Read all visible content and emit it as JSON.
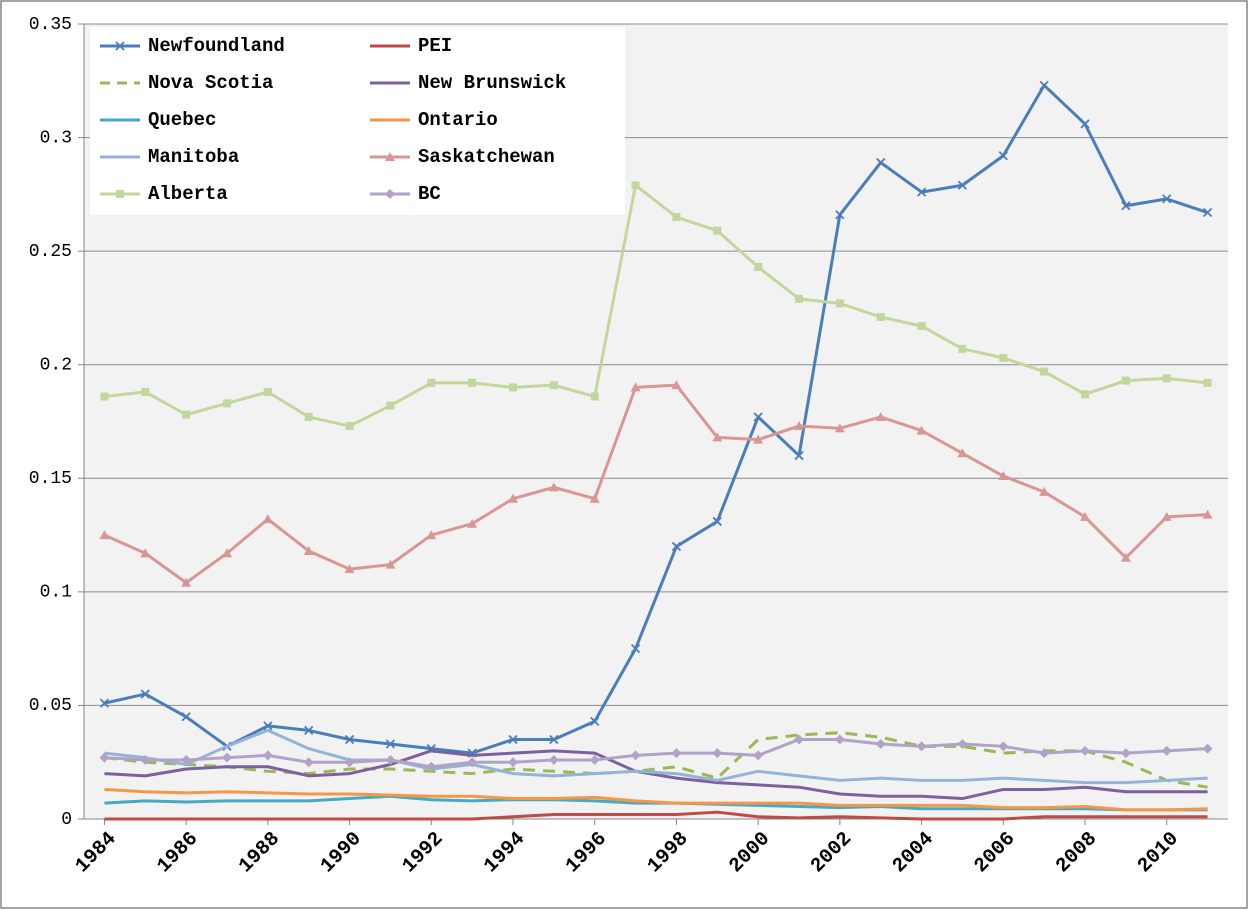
{
  "chart_data": {
    "type": "line",
    "x": [
      1984,
      1985,
      1986,
      1987,
      1988,
      1989,
      1990,
      1991,
      1992,
      1993,
      1994,
      1995,
      1996,
      1997,
      1998,
      1999,
      2000,
      2001,
      2002,
      2003,
      2004,
      2005,
      2006,
      2007,
      2008,
      2009,
      2010,
      2011
    ],
    "xlim": [
      1983.5,
      2011.5
    ],
    "xticks": [
      1984,
      1986,
      1988,
      1990,
      1992,
      1994,
      1996,
      1998,
      2000,
      2002,
      2004,
      2006,
      2008,
      2010
    ],
    "ylim": [
      0,
      0.35
    ],
    "yticks": [
      0,
      0.05,
      0.1,
      0.15,
      0.2,
      0.25,
      0.3,
      0.35
    ],
    "grid": true,
    "legend": "upper left",
    "series": [
      {
        "name": "Newfoundland",
        "color": "#4a7ebb",
        "marker": "x",
        "values": [
          0.051,
          0.055,
          0.045,
          0.032,
          0.041,
          0.039,
          0.035,
          0.033,
          0.031,
          0.029,
          0.035,
          0.035,
          0.043,
          0.075,
          0.12,
          0.131,
          0.177,
          0.16,
          0.266,
          0.289,
          0.276,
          0.279,
          0.292,
          0.323,
          0.306,
          0.27,
          0.273,
          0.267
        ]
      },
      {
        "name": "PEI",
        "color": "#be4b48",
        "values": [
          0,
          0,
          0,
          0,
          0,
          0,
          0,
          0,
          0,
          0,
          0.001,
          0.002,
          0.002,
          0.002,
          0.002,
          0.003,
          0.001,
          0.0005,
          0.001,
          0.0005,
          0,
          0,
          0,
          0.001,
          0.001,
          0.001,
          0.001,
          0.001
        ]
      },
      {
        "name": "Nova Scotia",
        "color": "#98b954",
        "dash": true,
        "values": [
          0.027,
          0.025,
          0.024,
          0.023,
          0.021,
          0.02,
          0.022,
          0.022,
          0.021,
          0.02,
          0.022,
          0.021,
          0.02,
          0.021,
          0.023,
          0.018,
          0.035,
          0.037,
          0.038,
          0.036,
          0.032,
          0.032,
          0.029,
          0.03,
          0.03,
          0.025,
          0.017,
          0.014
        ]
      },
      {
        "name": "New Brunswick",
        "color": "#7d60a0",
        "values": [
          0.02,
          0.019,
          0.022,
          0.023,
          0.023,
          0.019,
          0.02,
          0.024,
          0.03,
          0.028,
          0.029,
          0.03,
          0.029,
          0.021,
          0.018,
          0.016,
          0.015,
          0.014,
          0.011,
          0.01,
          0.01,
          0.009,
          0.013,
          0.013,
          0.014,
          0.012,
          0.012,
          0.012
        ]
      },
      {
        "name": "Quebec",
        "color": "#46aac5",
        "values": [
          0.007,
          0.008,
          0.0075,
          0.008,
          0.008,
          0.008,
          0.009,
          0.01,
          0.0085,
          0.008,
          0.0085,
          0.0085,
          0.008,
          0.007,
          0.007,
          0.0065,
          0.006,
          0.0055,
          0.005,
          0.0055,
          0.0045,
          0.0045,
          0.0045,
          0.0045,
          0.0045,
          0.004,
          0.004,
          0.004
        ]
      },
      {
        "name": "Ontario",
        "color": "#f79646",
        "values": [
          0.013,
          0.012,
          0.0115,
          0.012,
          0.0115,
          0.011,
          0.011,
          0.0105,
          0.01,
          0.01,
          0.009,
          0.009,
          0.0095,
          0.008,
          0.007,
          0.007,
          0.007,
          0.007,
          0.006,
          0.006,
          0.006,
          0.006,
          0.005,
          0.005,
          0.0055,
          0.004,
          0.004,
          0.0045
        ]
      },
      {
        "name": "Manitoba",
        "color": "#95b3d7",
        "values": [
          0.029,
          0.027,
          0.024,
          0.032,
          0.039,
          0.031,
          0.026,
          0.026,
          0.022,
          0.024,
          0.02,
          0.019,
          0.02,
          0.021,
          0.02,
          0.017,
          0.021,
          0.019,
          0.017,
          0.018,
          0.017,
          0.017,
          0.018,
          0.017,
          0.016,
          0.016,
          0.017,
          0.018
        ]
      },
      {
        "name": "Saskatchewan",
        "color": "#d99694",
        "marker": "triangle",
        "values": [
          0.125,
          0.117,
          0.104,
          0.117,
          0.132,
          0.118,
          0.11,
          0.112,
          0.125,
          0.13,
          0.141,
          0.146,
          0.141,
          0.19,
          0.191,
          0.168,
          0.167,
          0.173,
          0.172,
          0.177,
          0.171,
          0.161,
          0.151,
          0.144,
          0.133,
          0.115,
          0.133,
          0.134
        ]
      },
      {
        "name": "Alberta",
        "color": "#c3d69b",
        "marker": "square",
        "values": [
          0.186,
          0.188,
          0.178,
          0.183,
          0.188,
          0.177,
          0.173,
          0.182,
          0.192,
          0.192,
          0.19,
          0.191,
          0.186,
          0.279,
          0.265,
          0.259,
          0.243,
          0.229,
          0.227,
          0.221,
          0.217,
          0.207,
          0.203,
          0.197,
          0.187,
          0.193,
          0.194,
          0.192
        ]
      },
      {
        "name": "BC",
        "color": "#b3a2c7",
        "marker": "diamond",
        "values": [
          0.027,
          0.026,
          0.026,
          0.027,
          0.028,
          0.025,
          0.025,
          0.026,
          0.023,
          0.025,
          0.025,
          0.026,
          0.026,
          0.028,
          0.029,
          0.029,
          0.028,
          0.035,
          0.035,
          0.033,
          0.032,
          0.033,
          0.032,
          0.029,
          0.03,
          0.029,
          0.03,
          0.031
        ]
      }
    ]
  }
}
